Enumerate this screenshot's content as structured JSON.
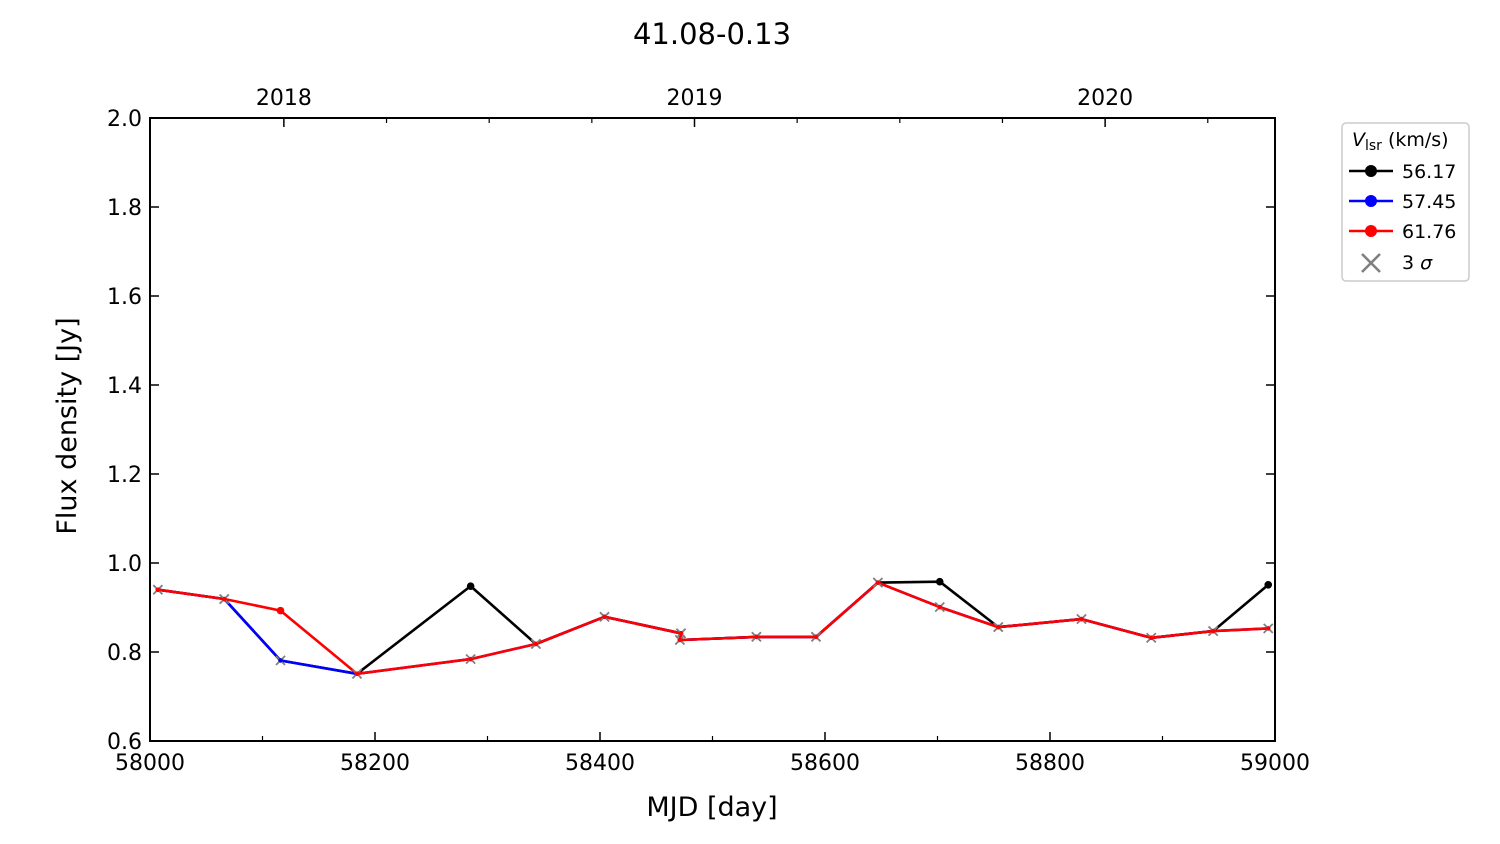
{
  "chart_data": {
    "type": "line",
    "title": "41.08-0.13",
    "xlabel": "MJD [day]",
    "ylabel": "Flux density [Jy]",
    "xlim": [
      58000,
      59000
    ],
    "ylim": [
      0.6,
      2.0
    ],
    "x_ticks": [
      "58000",
      "58200",
      "58400",
      "58600",
      "58800",
      "59000"
    ],
    "y_ticks": [
      "0.6",
      "0.8",
      "1.0",
      "1.2",
      "1.4",
      "1.6",
      "1.8",
      "2.0"
    ],
    "top_axis_ticks": [
      {
        "label": "2018",
        "mjd": 58119
      },
      {
        "label": "2019",
        "mjd": 58484
      },
      {
        "label": "2020",
        "mjd": 58849
      }
    ],
    "legend": {
      "title_main": "V",
      "title_sub": "lsr",
      "title_units": "(km/s)",
      "sigma_number": "3",
      "sigma_symbol": "σ",
      "sigma_color": "#808080",
      "position": "outside-right"
    },
    "series": [
      {
        "name": "56.17",
        "color": "#000000",
        "points": [
          {
            "x": 58007,
            "y": 0.94,
            "ul": true
          },
          {
            "x": 58066,
            "y": 0.919,
            "ul": true
          },
          {
            "x": 58116,
            "y": 0.781,
            "ul": true
          },
          {
            "x": 58184,
            "y": 0.751,
            "ul": true
          },
          {
            "x": 58285,
            "y": 0.948,
            "ul": false
          },
          {
            "x": 58343,
            "y": 0.818,
            "ul": true
          },
          {
            "x": 58404,
            "y": 0.879,
            "ul": true
          },
          {
            "x": 58472,
            "y": 0.842,
            "ul": true
          },
          {
            "x": 58471,
            "y": 0.827,
            "ul": true
          },
          {
            "x": 58539,
            "y": 0.834,
            "ul": true
          },
          {
            "x": 58592,
            "y": 0.834,
            "ul": true
          },
          {
            "x": 58647,
            "y": 0.956,
            "ul": true
          },
          {
            "x": 58702,
            "y": 0.958,
            "ul": false
          },
          {
            "x": 58754,
            "y": 0.856,
            "ul": true
          },
          {
            "x": 58828,
            "y": 0.874,
            "ul": true
          },
          {
            "x": 58890,
            "y": 0.832,
            "ul": true
          },
          {
            "x": 58945,
            "y": 0.847,
            "ul": true
          },
          {
            "x": 58994,
            "y": 0.951,
            "ul": false
          }
        ]
      },
      {
        "name": "57.45",
        "color": "#0000ff",
        "points": [
          {
            "x": 58007,
            "y": 0.94,
            "ul": true
          },
          {
            "x": 58066,
            "y": 0.919,
            "ul": true
          },
          {
            "x": 58116,
            "y": 0.781,
            "ul": true
          },
          {
            "x": 58184,
            "y": 0.751,
            "ul": true
          },
          {
            "x": 58285,
            "y": 0.784,
            "ul": true
          },
          {
            "x": 58343,
            "y": 0.818,
            "ul": true
          },
          {
            "x": 58404,
            "y": 0.879,
            "ul": true
          },
          {
            "x": 58472,
            "y": 0.842,
            "ul": true
          },
          {
            "x": 58471,
            "y": 0.827,
            "ul": true
          },
          {
            "x": 58539,
            "y": 0.834,
            "ul": true
          },
          {
            "x": 58592,
            "y": 0.834,
            "ul": true
          },
          {
            "x": 58647,
            "y": 0.956,
            "ul": true
          },
          {
            "x": 58702,
            "y": 0.901,
            "ul": true
          },
          {
            "x": 58754,
            "y": 0.856,
            "ul": true
          },
          {
            "x": 58828,
            "y": 0.874,
            "ul": true
          },
          {
            "x": 58890,
            "y": 0.832,
            "ul": true
          },
          {
            "x": 58945,
            "y": 0.847,
            "ul": true
          },
          {
            "x": 58994,
            "y": 0.853,
            "ul": true
          }
        ]
      },
      {
        "name": "61.76",
        "color": "#ff0000",
        "points": [
          {
            "x": 58007,
            "y": 0.94,
            "ul": true
          },
          {
            "x": 58066,
            "y": 0.919,
            "ul": true
          },
          {
            "x": 58116,
            "y": 0.893,
            "ul": false
          },
          {
            "x": 58184,
            "y": 0.751,
            "ul": true
          },
          {
            "x": 58285,
            "y": 0.784,
            "ul": true
          },
          {
            "x": 58343,
            "y": 0.818,
            "ul": true
          },
          {
            "x": 58404,
            "y": 0.879,
            "ul": true
          },
          {
            "x": 58472,
            "y": 0.842,
            "ul": true
          },
          {
            "x": 58471,
            "y": 0.827,
            "ul": true
          },
          {
            "x": 58539,
            "y": 0.834,
            "ul": true
          },
          {
            "x": 58592,
            "y": 0.834,
            "ul": true
          },
          {
            "x": 58647,
            "y": 0.956,
            "ul": true
          },
          {
            "x": 58702,
            "y": 0.901,
            "ul": true
          },
          {
            "x": 58754,
            "y": 0.856,
            "ul": true
          },
          {
            "x": 58828,
            "y": 0.874,
            "ul": true
          },
          {
            "x": 58890,
            "y": 0.832,
            "ul": true
          },
          {
            "x": 58945,
            "y": 0.847,
            "ul": true
          },
          {
            "x": 58994,
            "y": 0.853,
            "ul": true
          }
        ]
      }
    ]
  }
}
